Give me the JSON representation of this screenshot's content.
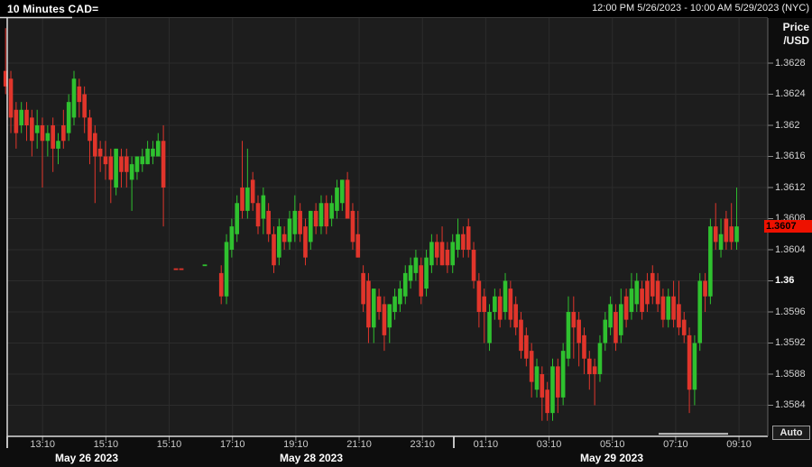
{
  "title_bar": {
    "title": "10 Minutes CAD=",
    "time_range": "12:00 PM 5/26/2023 - 10:00 AM 5/29/2023 (NYC)"
  },
  "y_axis": {
    "title_line1": "Price",
    "title_line2": "/USD",
    "ticks": [
      "1.3628",
      "1.3624",
      "1.362",
      "1.3616",
      "1.3612",
      "1.3608",
      "1.3604",
      "1.36",
      "1.3596",
      "1.3592",
      "1.3588",
      "1.3584"
    ],
    "emphasized_tick": "1.36",
    "last_price_badge": "1.3607",
    "auto_button": "Auto"
  },
  "x_axis": {
    "time_ticks": [
      "13:10",
      "15:10",
      "15:10",
      "17:10",
      "19:10",
      "21:10",
      "23:10",
      "01:10",
      "03:10",
      "05:10",
      "07:10",
      "09:10"
    ],
    "date_labels": [
      "May 26 2023",
      "May 28 2023",
      "May 29 2023"
    ]
  },
  "chart_data": {
    "type": "candlestick",
    "title": "10 Minutes CAD=",
    "instrument": "CAD=",
    "interval": "10 minutes",
    "timezone": "NYC",
    "ylabel": "Price/USD",
    "ylim": [
      1.358,
      1.36338
    ],
    "grid": true,
    "last_price": 1.3607,
    "up_color": "#2fc12f",
    "down_color": "#e1352b",
    "badge_color": "#ee1100",
    "sessions": [
      {
        "name": "friday-may-26",
        "style": "candle",
        "candles": [
          [
            1.3627,
            1.36325,
            1.3624,
            1.3625
          ],
          [
            1.3626,
            1.3627,
            1.3619,
            1.3621
          ],
          [
            1.3622,
            1.3623,
            1.3617,
            1.3619
          ],
          [
            1.362,
            1.3623,
            1.3619,
            1.3622
          ],
          [
            1.3622,
            1.3623,
            1.3618,
            1.362
          ],
          [
            1.3621,
            1.3622,
            1.3616,
            1.3618
          ],
          [
            1.3619,
            1.3622,
            1.3617,
            1.362
          ],
          [
            1.362,
            1.3621,
            1.3612,
            1.3618
          ],
          [
            1.3618,
            1.362,
            1.3616,
            1.3619
          ],
          [
            1.362,
            1.3621,
            1.3614,
            1.3617
          ],
          [
            1.3617,
            1.3619,
            1.3615,
            1.3618
          ],
          [
            1.362,
            1.3622,
            1.3617,
            1.3618
          ],
          [
            1.3619,
            1.3624,
            1.3618,
            1.3623
          ],
          [
            1.3621,
            1.3627,
            1.362,
            1.3626
          ],
          [
            1.3625,
            1.3626,
            1.3621,
            1.3623
          ],
          [
            1.3624,
            1.3625,
            1.3619,
            1.3621
          ],
          [
            1.3621,
            1.3622,
            1.3615,
            1.3618
          ],
          [
            1.3619,
            1.362,
            1.361,
            1.3616
          ],
          [
            1.3617,
            1.3618,
            1.3614,
            1.3616
          ],
          [
            1.3616,
            1.3618,
            1.3613,
            1.3615
          ],
          [
            1.3616,
            1.3617,
            1.361,
            1.3613
          ],
          [
            1.3612,
            1.3617,
            1.3611,
            1.3617
          ],
          [
            1.3616,
            1.3617,
            1.3612,
            1.3614
          ],
          [
            1.3616,
            1.3617,
            1.3612,
            1.3614
          ],
          [
            1.3613,
            1.3616,
            1.3609,
            1.3615
          ],
          [
            1.3614,
            1.3616,
            1.3613,
            1.3616
          ],
          [
            1.3615,
            1.3617,
            1.3614,
            1.3616
          ],
          [
            1.3615,
            1.3618,
            1.3615,
            1.3617
          ],
          [
            1.3616,
            1.3618,
            1.3615,
            1.3617
          ],
          [
            1.3616,
            1.3619,
            1.3616,
            1.3618
          ],
          [
            1.3618,
            1.362,
            1.3607,
            1.3612
          ]
        ]
      },
      {
        "name": "sunday-premarket-quotes",
        "style": "dash",
        "candles": [
          [
            1.3602,
            1.3602,
            1.3601,
            1.3601
          ],
          [
            1.3602,
            1.3602,
            1.3601,
            1.3601
          ],
          [
            1.3602,
            1.3602,
            1.3601,
            1.3602
          ]
        ]
      },
      {
        "name": "sunday-monday-may-28-29",
        "style": "candle",
        "candles": [
          [
            1.3601,
            1.3602,
            1.3597,
            1.3598
          ],
          [
            1.3598,
            1.3606,
            1.3597,
            1.3605
          ],
          [
            1.3604,
            1.3608,
            1.3603,
            1.3607
          ],
          [
            1.3606,
            1.3611,
            1.3605,
            1.361
          ],
          [
            1.3612,
            1.3618,
            1.3608,
            1.3609
          ],
          [
            1.3609,
            1.3617,
            1.3608,
            1.3612
          ],
          [
            1.3613,
            1.3614,
            1.3609,
            1.361
          ],
          [
            1.361,
            1.3611,
            1.3606,
            1.3607
          ],
          [
            1.3608,
            1.3612,
            1.3606,
            1.3611
          ],
          [
            1.3609,
            1.361,
            1.3605,
            1.3606
          ],
          [
            1.3606,
            1.3607,
            1.3601,
            1.3602
          ],
          [
            1.3603,
            1.3608,
            1.3602,
            1.3607
          ],
          [
            1.3606,
            1.3607,
            1.3604,
            1.3605
          ],
          [
            1.3605,
            1.3609,
            1.3604,
            1.3608
          ],
          [
            1.3606,
            1.3611,
            1.3605,
            1.3609
          ],
          [
            1.3609,
            1.361,
            1.3605,
            1.3606
          ],
          [
            1.3607,
            1.3608,
            1.3602,
            1.3603
          ],
          [
            1.3605,
            1.3609,
            1.3604,
            1.3609
          ],
          [
            1.3609,
            1.361,
            1.3606,
            1.3607
          ],
          [
            1.3607,
            1.3611,
            1.3606,
            1.361
          ],
          [
            1.361,
            1.3611,
            1.3606,
            1.3607
          ],
          [
            1.3608,
            1.3611,
            1.3607,
            1.361
          ],
          [
            1.3609,
            1.3613,
            1.3608,
            1.3612
          ],
          [
            1.361,
            1.3613,
            1.3609,
            1.3613
          ],
          [
            1.3613,
            1.3614,
            1.3608,
            1.3608
          ],
          [
            1.3609,
            1.361,
            1.3604,
            1.3605
          ],
          [
            1.3606,
            1.3609,
            1.3603,
            1.3603
          ],
          [
            1.3601,
            1.3602,
            1.3596,
            1.3597
          ],
          [
            1.36,
            1.3601,
            1.3592,
            1.3594
          ],
          [
            1.3594,
            1.3599,
            1.3592,
            1.3599
          ],
          [
            1.3598,
            1.3599,
            1.3595,
            1.3596
          ],
          [
            1.3597,
            1.3598,
            1.3591,
            1.3593
          ],
          [
            1.3594,
            1.3597,
            1.3592,
            1.3597
          ],
          [
            1.3596,
            1.3599,
            1.3595,
            1.3598
          ],
          [
            1.3597,
            1.36,
            1.3596,
            1.3599
          ],
          [
            1.3598,
            1.3602,
            1.3597,
            1.3601
          ],
          [
            1.36,
            1.3603,
            1.3599,
            1.3602
          ],
          [
            1.3601,
            1.3604,
            1.36,
            1.3603
          ],
          [
            1.3602,
            1.3603,
            1.3597,
            1.3598
          ],
          [
            1.3599,
            1.3604,
            1.3598,
            1.3603
          ],
          [
            1.3602,
            1.3606,
            1.3601,
            1.3605
          ],
          [
            1.3605,
            1.3606,
            1.3602,
            1.3603
          ],
          [
            1.3605,
            1.3607,
            1.3602,
            1.3602
          ],
          [
            1.3604,
            1.3605,
            1.3601,
            1.3602
          ],
          [
            1.3602,
            1.3606,
            1.3601,
            1.3605
          ],
          [
            1.3604,
            1.3608,
            1.3603,
            1.3606
          ],
          [
            1.3606,
            1.3607,
            1.3603,
            1.3604
          ],
          [
            1.3607,
            1.3608,
            1.3603,
            1.3604
          ],
          [
            1.3604,
            1.3605,
            1.3599,
            1.36
          ],
          [
            1.36,
            1.3601,
            1.3594,
            1.3596
          ],
          [
            1.3598,
            1.3599,
            1.3592,
            1.3596
          ],
          [
            1.3592,
            1.3597,
            1.3591,
            1.3596
          ],
          [
            1.3596,
            1.3599,
            1.3595,
            1.3598
          ],
          [
            1.3598,
            1.3599,
            1.3594,
            1.3595
          ],
          [
            1.3596,
            1.3601,
            1.3595,
            1.36
          ],
          [
            1.3599,
            1.36,
            1.3594,
            1.3595
          ],
          [
            1.3597,
            1.3598,
            1.3593,
            1.3594
          ],
          [
            1.3595,
            1.3596,
            1.359,
            1.3591
          ],
          [
            1.3593,
            1.3594,
            1.3589,
            1.359
          ],
          [
            1.3591,
            1.3592,
            1.3585,
            1.3587
          ],
          [
            1.3586,
            1.359,
            1.3585,
            1.3589
          ],
          [
            1.3588,
            1.3589,
            1.3582,
            1.3585
          ],
          [
            1.3586,
            1.3587,
            1.3582,
            1.3583
          ],
          [
            1.3583,
            1.359,
            1.3582,
            1.3589
          ],
          [
            1.3589,
            1.359,
            1.3583,
            1.3585
          ],
          [
            1.3585,
            1.3592,
            1.3584,
            1.3591
          ],
          [
            1.359,
            1.3598,
            1.3589,
            1.3596
          ],
          [
            1.3596,
            1.3598,
            1.359,
            1.3594
          ],
          [
            1.3595,
            1.3596,
            1.3589,
            1.3592
          ],
          [
            1.3593,
            1.3594,
            1.3588,
            1.359
          ],
          [
            1.359,
            1.3591,
            1.3586,
            1.3588
          ],
          [
            1.3589,
            1.359,
            1.3584,
            1.3588
          ],
          [
            1.3588,
            1.3593,
            1.3587,
            1.3592
          ],
          [
            1.3592,
            1.3596,
            1.3591,
            1.3595
          ],
          [
            1.3594,
            1.3598,
            1.3593,
            1.3597
          ],
          [
            1.3596,
            1.3597,
            1.3591,
            1.3592
          ],
          [
            1.3593,
            1.3599,
            1.3592,
            1.3597
          ],
          [
            1.3598,
            1.3599,
            1.3594,
            1.3595
          ],
          [
            1.3596,
            1.3601,
            1.3595,
            1.3599
          ],
          [
            1.3597,
            1.3601,
            1.3596,
            1.36
          ],
          [
            1.3599,
            1.36,
            1.3595,
            1.3596
          ],
          [
            1.36,
            1.3601,
            1.3596,
            1.3597
          ],
          [
            1.3601,
            1.3602,
            1.3597,
            1.3598
          ],
          [
            1.36,
            1.3601,
            1.3596,
            1.3597
          ],
          [
            1.3598,
            1.3599,
            1.3594,
            1.3595
          ],
          [
            1.3595,
            1.3599,
            1.3594,
            1.3598
          ],
          [
            1.3598,
            1.36,
            1.3594,
            1.3595
          ],
          [
            1.3597,
            1.36,
            1.3593,
            1.3594
          ],
          [
            1.3595,
            1.3596,
            1.3592,
            1.3593
          ],
          [
            1.3593,
            1.3594,
            1.3583,
            1.3586
          ],
          [
            1.3586,
            1.3593,
            1.3584,
            1.3592
          ],
          [
            1.3592,
            1.3601,
            1.3591,
            1.36
          ],
          [
            1.36,
            1.3601,
            1.3596,
            1.3598
          ],
          [
            1.3598,
            1.3608,
            1.3597,
            1.3607
          ],
          [
            1.3607,
            1.361,
            1.3604,
            1.3605
          ],
          [
            1.3604,
            1.3608,
            1.3603,
            1.3606
          ],
          [
            1.3608,
            1.3609,
            1.3604,
            1.3605
          ],
          [
            1.3607,
            1.361,
            1.3604,
            1.3605
          ],
          [
            1.3605,
            1.3612,
            1.3604,
            1.3607
          ]
        ]
      }
    ]
  }
}
